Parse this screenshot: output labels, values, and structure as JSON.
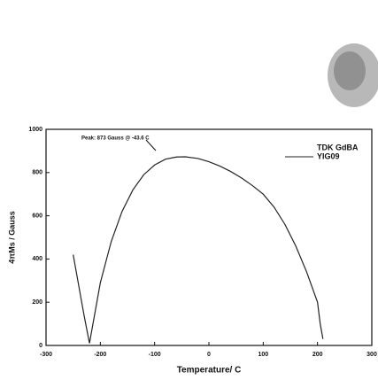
{
  "chart_data": {
    "type": "line",
    "annotation": "Peak: 873 Gauss @ -43.6 C",
    "legend_title": "TDK GdBA",
    "xlabel": "Temperature/ C",
    "ylabel": "4πMs / Gauss",
    "x": [
      -250,
      -240,
      -230,
      -220,
      -210,
      -200,
      -180,
      -160,
      -140,
      -120,
      -100,
      -80,
      -60,
      -43.6,
      -20,
      0,
      20,
      40,
      60,
      80,
      100,
      120,
      140,
      160,
      180,
      200,
      205,
      210
    ],
    "series": [
      {
        "name": "YIG09",
        "color": "#222222",
        "values": [
          420,
          280,
          140,
          10,
          150,
          290,
          480,
          620,
          720,
          790,
          835,
          862,
          872,
          873,
          865,
          850,
          830,
          805,
          775,
          740,
          700,
          640,
          560,
          460,
          340,
          200,
          100,
          30
        ]
      }
    ],
    "xlim": [
      -300,
      300
    ],
    "xticks": [
      -300,
      -200,
      -100,
      0,
      100,
      200,
      300
    ],
    "ylim": [
      0,
      1000
    ],
    "yticks": [
      0,
      200,
      400,
      600,
      800,
      1000
    ]
  }
}
